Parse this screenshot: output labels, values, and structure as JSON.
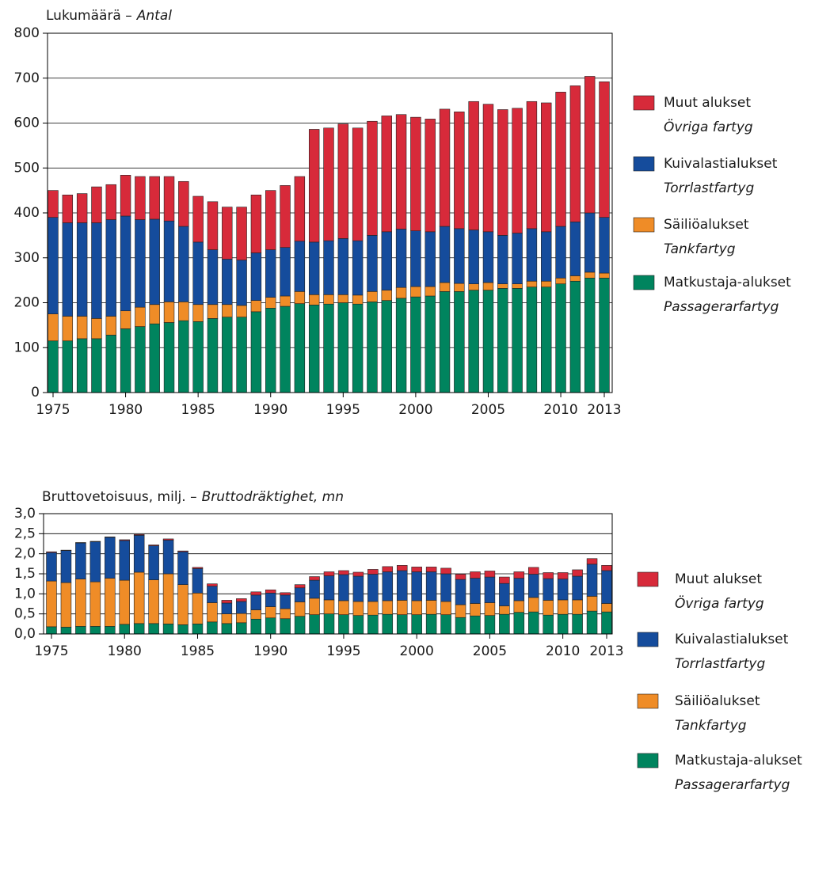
{
  "chart_data": [
    {
      "type": "stacked_bar",
      "ylabel": "Lukumäärä –",
      "ylabel_italic": "Antal",
      "categories": [
        1975,
        1976,
        1977,
        1978,
        1979,
        1980,
        1981,
        1982,
        1983,
        1984,
        1985,
        1986,
        1987,
        1988,
        1989,
        1990,
        1991,
        1992,
        1993,
        1994,
        1995,
        1996,
        1997,
        1998,
        1999,
        2000,
        2001,
        2002,
        2003,
        2004,
        2005,
        2006,
        2007,
        2008,
        2009,
        2010,
        2011,
        2012,
        2013
      ],
      "xticks": [
        1975,
        1980,
        1985,
        1990,
        1995,
        2000,
        2005,
        2010,
        2013
      ],
      "ylim": [
        0,
        800
      ],
      "yticks": [
        0,
        100,
        200,
        300,
        400,
        500,
        600,
        700,
        800
      ],
      "grid": true,
      "series": [
        {
          "name": "Matkustaja-alukset",
          "name_italic": "Passagerarfartyg",
          "color": "#00845e",
          "values": [
            115,
            115,
            120,
            120,
            128,
            142,
            147,
            153,
            156,
            160,
            158,
            165,
            168,
            168,
            180,
            188,
            192,
            198,
            195,
            197,
            200,
            197,
            202,
            205,
            210,
            213,
            215,
            225,
            225,
            228,
            228,
            232,
            232,
            235,
            235,
            242,
            248,
            255,
            255
          ]
        },
        {
          "name": "Säiliöalukset",
          "name_italic": "Tankfartyg",
          "color": "#ef8c27",
          "values": [
            60,
            55,
            50,
            45,
            42,
            40,
            43,
            43,
            46,
            42,
            38,
            31,
            28,
            26,
            25,
            24,
            23,
            27,
            23,
            21,
            18,
            20,
            23,
            23,
            24,
            23,
            21,
            20,
            18,
            14,
            17,
            10,
            10,
            13,
            13,
            13,
            12,
            13,
            11
          ]
        },
        {
          "name": "Kuivalastialukset",
          "name_italic": "Torrlastfartyg",
          "color": "#154c9c",
          "values": [
            215,
            208,
            208,
            213,
            215,
            211,
            195,
            190,
            180,
            168,
            139,
            122,
            101,
            101,
            106,
            106,
            108,
            112,
            117,
            120,
            125,
            121,
            125,
            130,
            130,
            124,
            122,
            125,
            122,
            120,
            113,
            108,
            113,
            117,
            110,
            115,
            120,
            132,
            124
          ]
        },
        {
          "name": "Muut alukset",
          "name_italic": "Övriga fartyg",
          "color": "#d72a3a",
          "values": [
            60,
            62,
            65,
            80,
            78,
            91,
            96,
            95,
            99,
            100,
            102,
            107,
            116,
            118,
            129,
            132,
            138,
            144,
            251,
            251,
            255,
            251,
            254,
            258,
            255,
            253,
            251,
            261,
            260,
            286,
            284,
            280,
            278,
            283,
            287,
            299,
            303,
            304,
            302
          ]
        }
      ]
    },
    {
      "type": "stacked_bar",
      "ylabel": "Bruttovetoisuus, milj. –",
      "ylabel_italic": "Bruttodräktighet, mn",
      "categories": [
        1975,
        1976,
        1977,
        1978,
        1979,
        1980,
        1981,
        1982,
        1983,
        1984,
        1985,
        1986,
        1987,
        1988,
        1989,
        1990,
        1991,
        1992,
        1993,
        1994,
        1995,
        1996,
        1997,
        1998,
        1999,
        2000,
        2001,
        2002,
        2003,
        2004,
        2005,
        2006,
        2007,
        2008,
        2009,
        2010,
        2011,
        2012,
        2013
      ],
      "xticks": [
        1975,
        1980,
        1985,
        1990,
        1995,
        2000,
        2005,
        2010,
        2013
      ],
      "ylim": [
        0,
        3
      ],
      "yticks": [
        {
          "value": 0,
          "label": "0,0"
        },
        {
          "value": 0.5,
          "label": "0,5"
        },
        {
          "value": 1,
          "label": "1,0"
        },
        {
          "value": 1.5,
          "label": "1,5"
        },
        {
          "value": 2,
          "label": "2,0"
        },
        {
          "value": 2.5,
          "label": "2,5"
        },
        {
          "value": 3,
          "label": "3,0"
        }
      ],
      "grid": true,
      "series": [
        {
          "name": "Matkustaja-alukset",
          "name_italic": "Passagerarfartyg",
          "color": "#00845e",
          "values": [
            0.18,
            0.17,
            0.19,
            0.19,
            0.19,
            0.24,
            0.26,
            0.26,
            0.25,
            0.23,
            0.25,
            0.3,
            0.26,
            0.28,
            0.37,
            0.4,
            0.38,
            0.44,
            0.48,
            0.5,
            0.48,
            0.46,
            0.47,
            0.49,
            0.48,
            0.48,
            0.49,
            0.48,
            0.41,
            0.45,
            0.46,
            0.49,
            0.54,
            0.55,
            0.47,
            0.49,
            0.49,
            0.57,
            0.55
          ]
        },
        {
          "name": "Säiliöalukset",
          "name_italic": "Tankfartyg",
          "color": "#ef8c27",
          "values": [
            1.14,
            1.11,
            1.18,
            1.11,
            1.2,
            1.1,
            1.28,
            1.09,
            1.25,
            1.0,
            0.77,
            0.48,
            0.24,
            0.23,
            0.23,
            0.28,
            0.25,
            0.36,
            0.41,
            0.35,
            0.35,
            0.35,
            0.34,
            0.34,
            0.36,
            0.35,
            0.35,
            0.33,
            0.32,
            0.31,
            0.32,
            0.21,
            0.29,
            0.36,
            0.37,
            0.36,
            0.36,
            0.37,
            0.21
          ]
        },
        {
          "name": "Kuivalastialukset",
          "name_italic": "Torrlastfartyg",
          "color": "#154c9c",
          "values": [
            0.71,
            0.8,
            0.9,
            1.0,
            1.02,
            0.99,
            0.92,
            0.85,
            0.84,
            0.82,
            0.61,
            0.41,
            0.27,
            0.3,
            0.37,
            0.34,
            0.34,
            0.35,
            0.45,
            0.6,
            0.65,
            0.63,
            0.68,
            0.72,
            0.74,
            0.72,
            0.71,
            0.69,
            0.63,
            0.63,
            0.64,
            0.56,
            0.56,
            0.58,
            0.54,
            0.52,
            0.59,
            0.8,
            0.82
          ]
        },
        {
          "name": "Muut alukset",
          "name_italic": "Övriga fartyg",
          "color": "#d72a3a",
          "values": [
            0.02,
            0.01,
            0.01,
            0.01,
            0.01,
            0.02,
            0.02,
            0.02,
            0.03,
            0.02,
            0.03,
            0.06,
            0.07,
            0.07,
            0.08,
            0.08,
            0.06,
            0.08,
            0.09,
            0.1,
            0.1,
            0.1,
            0.12,
            0.13,
            0.13,
            0.12,
            0.12,
            0.14,
            0.13,
            0.16,
            0.15,
            0.16,
            0.16,
            0.17,
            0.15,
            0.16,
            0.16,
            0.14,
            0.13
          ]
        }
      ]
    }
  ]
}
